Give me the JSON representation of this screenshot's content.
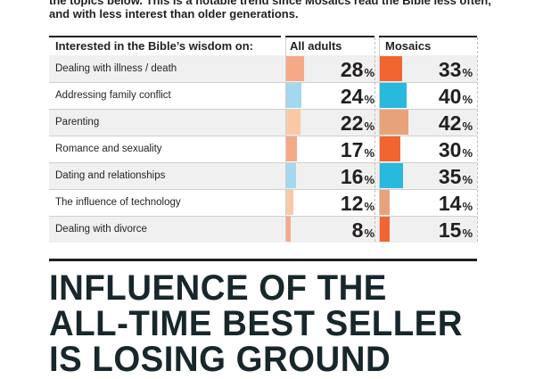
{
  "intro_lines": [
    "the topics below. This is a notable trend since Mosaics read the Bible less often,",
    "and with less interest than older generations."
  ],
  "headline_lines": [
    "INFLUENCE OF THE",
    "ALL-TIME BEST SELLER",
    "IS LOSING GROUND"
  ],
  "colors": {
    "orange": "#f26531",
    "blue": "#29b9df",
    "tan": "#e8a27a",
    "salmon_light": "#f6a987",
    "blue_light": "#a4d8ee",
    "peach_light": "#fac9a4",
    "row_shade": "#f0f0f0"
  },
  "chart_data": {
    "type": "bar",
    "title": "Interested in the Bible’s wisdom on:",
    "categories": [
      "Dealing with illness / death",
      "Addressing family conflict",
      "Parenting",
      "Romance and sexuality",
      "Dating and relationships",
      "The influence of technology",
      "Dealing with divorce"
    ],
    "series": [
      {
        "name": "All adults",
        "values": [
          28,
          24,
          22,
          17,
          16,
          12,
          8
        ],
        "colors": [
          "#f6a987",
          "#a4d8ee",
          "#fac9a4",
          "#f6a987",
          "#a4d8ee",
          "#fac9a4",
          "#f6a987"
        ]
      },
      {
        "name": "Mosaics",
        "values": [
          33,
          40,
          42,
          30,
          35,
          14,
          15
        ],
        "colors": [
          "#f26531",
          "#29b9df",
          "#e8a27a",
          "#f26531",
          "#29b9df",
          "#e8a27a",
          "#f26531"
        ]
      }
    ],
    "unit": "%",
    "ylim": [
      0,
      100
    ],
    "grid": false,
    "legend": "top"
  }
}
